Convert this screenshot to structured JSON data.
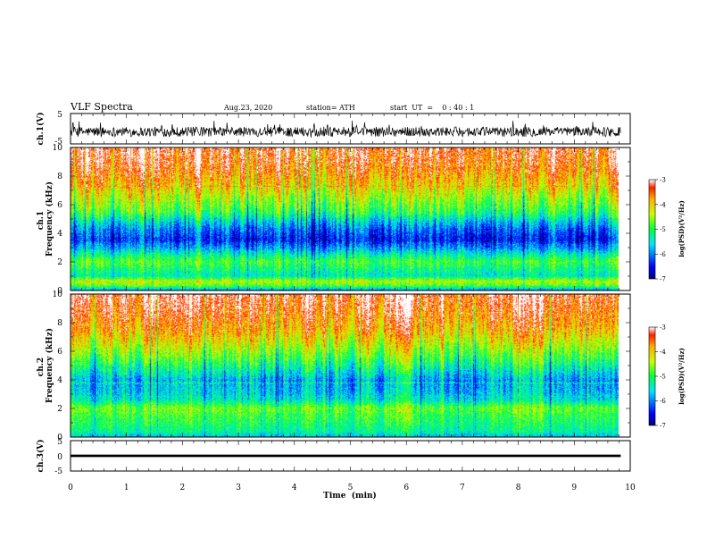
{
  "header": {
    "title": "VLF Spectra",
    "date": "Aug.23, 2020",
    "station": "station= ATH",
    "start": "start  UT  =    0 : 40 : 1"
  },
  "chart_data": [
    {
      "type": "line",
      "name": "ch1-waveform",
      "ylabel": "ch.1(V)",
      "ylim": [
        -5,
        5
      ],
      "yticks": [
        "5",
        "-5"
      ],
      "xlim": [
        0,
        10
      ],
      "data_end_min": 9.83,
      "approx_mean_v": -1.0,
      "approx_range_v": [
        -4.0,
        2.6
      ]
    },
    {
      "type": "heatmap",
      "name": "ch1-spectrogram",
      "ylabel": "ch.1\nFrequency  (kHz)",
      "ylim": [
        0,
        10
      ],
      "yticks": [
        "0",
        "2",
        "4",
        "6",
        "8",
        "10"
      ],
      "xlim": [
        0,
        10
      ],
      "data_end_min": 9.83,
      "band_levels": [
        {
          "f": 0.0,
          "level": -5.8
        },
        {
          "f": 0.3,
          "level": -4.8
        },
        {
          "f": 0.6,
          "level": -4.3
        },
        {
          "f": 1.0,
          "level": -5.4
        },
        {
          "f": 1.5,
          "level": -5.1
        },
        {
          "f": 2.0,
          "level": -4.8
        },
        {
          "f": 2.5,
          "level": -5.3
        },
        {
          "f": 3.0,
          "level": -5.9
        },
        {
          "f": 3.6,
          "level": -6.4
        },
        {
          "f": 4.2,
          "level": -6.1
        },
        {
          "f": 4.8,
          "level": -5.6
        },
        {
          "f": 5.5,
          "level": -4.9
        },
        {
          "f": 6.5,
          "level": -4.4
        },
        {
          "f": 7.5,
          "level": -3.9
        },
        {
          "f": 8.5,
          "level": -3.5
        },
        {
          "f": 10.0,
          "level": -3.2
        }
      ],
      "colorbar": {
        "label": "log(PSD)(V²/Hz)",
        "range": [
          -7,
          -3
        ],
        "ticks": [
          "-3",
          "-4",
          "-5",
          "-6",
          "-7"
        ]
      }
    },
    {
      "type": "heatmap",
      "name": "ch2-spectrogram",
      "ylabel": "ch.2\nFrequency  (kHz)",
      "ylim": [
        0,
        10
      ],
      "yticks": [
        "0",
        "2",
        "4",
        "6",
        "8",
        "10"
      ],
      "xlim": [
        0,
        10
      ],
      "data_end_min": 9.83,
      "band_levels": [
        {
          "f": 0.0,
          "level": -5.6
        },
        {
          "f": 0.4,
          "level": -5.2
        },
        {
          "f": 1.0,
          "level": -5.0
        },
        {
          "f": 1.6,
          "level": -4.8
        },
        {
          "f": 2.0,
          "level": -4.6
        },
        {
          "f": 2.6,
          "level": -5.4
        },
        {
          "f": 3.2,
          "level": -5.6
        },
        {
          "f": 4.0,
          "level": -5.7
        },
        {
          "f": 4.6,
          "level": -5.3
        },
        {
          "f": 5.4,
          "level": -4.8
        },
        {
          "f": 6.5,
          "level": -4.2
        },
        {
          "f": 7.5,
          "level": -3.7
        },
        {
          "f": 8.5,
          "level": -3.4
        },
        {
          "f": 10.0,
          "level": -3.1
        }
      ],
      "colorbar": {
        "label": "log(PSD)(V²/Hz)",
        "range": [
          -7,
          -3
        ],
        "ticks": [
          "-3",
          "-4",
          "-5",
          "-6",
          "-7"
        ]
      }
    },
    {
      "type": "line",
      "name": "ch3-waveform",
      "ylabel": "ch.3(V)",
      "ylim": [
        -5,
        5
      ],
      "yticks": [
        "5",
        "0",
        "-5"
      ],
      "xlim": [
        0,
        10
      ],
      "data_end_min": 9.83,
      "approx_mean_v": 0.0,
      "approx_range_v": [
        -0.4,
        0.4
      ]
    }
  ],
  "xaxis": {
    "label": "Time  (min)",
    "ticks": [
      "0",
      "1",
      "2",
      "3",
      "4",
      "5",
      "6",
      "7",
      "8",
      "9",
      "10"
    ]
  }
}
